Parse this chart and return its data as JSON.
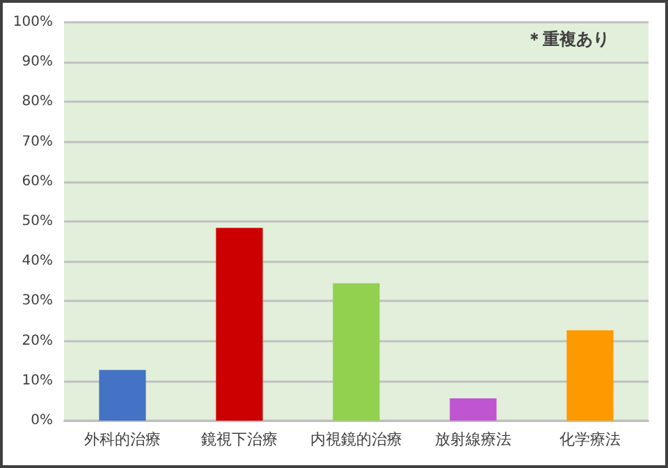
{
  "chart_data": {
    "type": "bar",
    "categories": [
      "外科的治療",
      "鏡視下治療",
      "内視鏡的治療",
      "放射線療法",
      "化学療法"
    ],
    "values": [
      12.7,
      48.4,
      34.5,
      5.6,
      22.7
    ],
    "colors": [
      "#4472c4",
      "#cc0000",
      "#92d050",
      "#bf55d0",
      "#ff9900"
    ],
    "ylim": [
      0,
      100
    ],
    "yticks": [
      {
        "value": 0,
        "label": "0%"
      },
      {
        "value": 10,
        "label": "10%"
      },
      {
        "value": 20,
        "label": "20%"
      },
      {
        "value": 30,
        "label": "30%"
      },
      {
        "value": 40,
        "label": "40%"
      },
      {
        "value": 50,
        "label": "50%"
      },
      {
        "value": 60,
        "label": "60%"
      },
      {
        "value": 70,
        "label": "70%"
      },
      {
        "value": 80,
        "label": "80%"
      },
      {
        "value": 90,
        "label": "90%"
      },
      {
        "value": 100,
        "label": "100%"
      }
    ],
    "grid": "y",
    "annotations": [
      "＊重複あり"
    ]
  }
}
